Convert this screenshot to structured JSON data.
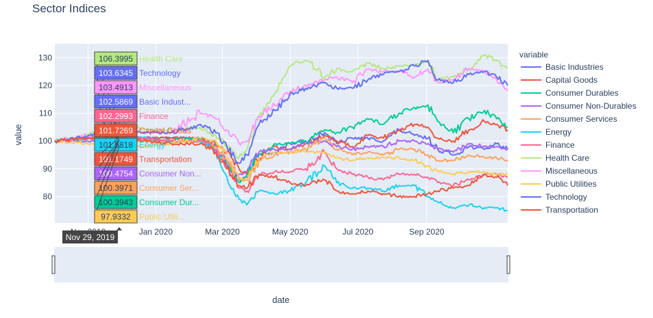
{
  "chart_data": {
    "type": "line",
    "title": "Sector Indices",
    "xlabel": "date",
    "ylabel": "value",
    "legend_title": "variable",
    "legend_position": "right",
    "grid": true,
    "x_ticks": [
      "Nov 2019",
      "Jan 2020",
      "Mar 2020",
      "May 2020",
      "Jul 2020",
      "Sep 2020"
    ],
    "y_ticks": [
      80,
      90,
      100,
      110,
      120,
      130
    ],
    "ylim": [
      70.5,
      135
    ],
    "xlim": [
      "2019-10-02",
      "2020-11-13"
    ],
    "hover_date": "Nov 29, 2019",
    "x_anchors": [
      "2019-10-02",
      "2019-11-01",
      "2019-11-29",
      "2019-12-20",
      "2020-01-15",
      "2020-02-10",
      "2020-02-24",
      "2020-03-05",
      "2020-03-16",
      "2020-03-23",
      "2020-04-03",
      "2020-04-17",
      "2020-05-01",
      "2020-05-15",
      "2020-06-01",
      "2020-06-12",
      "2020-06-26",
      "2020-07-10",
      "2020-07-24",
      "2020-08-07",
      "2020-08-21",
      "2020-09-02",
      "2020-09-11",
      "2020-09-25",
      "2020-10-09",
      "2020-10-23",
      "2020-11-03",
      "2020-11-13"
    ],
    "series": [
      {
        "name": "Basic Industries",
        "color": "#636efa",
        "hover_value": "102.5869",
        "hover_label": "Basic Indust...",
        "values": [
          100,
          101,
          102.59,
          101,
          101,
          101,
          98,
          92,
          86,
          87,
          95,
          96,
          99,
          100,
          103,
          99,
          101,
          101,
          100,
          104,
          102,
          101,
          97,
          95,
          98,
          97,
          99,
          97
        ]
      },
      {
        "name": "Capital Goods",
        "color": "#ef553b",
        "hover_value": "101.7269",
        "hover_label": "Capital Goods",
        "values": [
          100,
          101,
          101.73,
          101,
          101,
          101,
          99,
          96,
          90,
          88,
          94,
          98,
          97,
          99,
          102,
          100,
          98,
          102,
          101,
          104,
          106,
          105,
          101,
          100,
          104,
          107,
          106,
          104
        ]
      },
      {
        "name": "Consumer Durables",
        "color": "#00cc96",
        "hover_value": "100.3943",
        "hover_label": "Consumer Dur...",
        "values": [
          100,
          101,
          100.39,
          100,
          100,
          101,
          97,
          92,
          85,
          88,
          95,
          99,
          99,
          100,
          104,
          103,
          105,
          108,
          106,
          110,
          112,
          113,
          107,
          103,
          108,
          111,
          108,
          105
        ]
      },
      {
        "name": "Consumer Non-Durables",
        "color": "#ab63fa",
        "hover_value": "100.4754",
        "hover_label": "Consumer Non...",
        "values": [
          100,
          100,
          100.48,
          100,
          100,
          100,
          97,
          93,
          88,
          89,
          96,
          97,
          97,
          99,
          100,
          98,
          97,
          98,
          98,
          100,
          100,
          99,
          97,
          96,
          99,
          98,
          98,
          97
        ]
      },
      {
        "name": "Consumer Services",
        "color": "#ffa15a",
        "hover_value": "100.3971",
        "hover_label": "Consumer Ser...",
        "values": [
          100,
          101,
          100.4,
          100,
          100,
          100,
          98,
          93,
          86,
          86,
          93,
          95,
          96,
          97,
          101,
          97,
          95,
          96,
          95,
          97,
          97,
          95,
          93,
          93,
          95,
          94,
          94,
          93
        ]
      },
      {
        "name": "Energy",
        "color": "#19d3f3",
        "hover_value": "101.5818",
        "hover_label": "Energy",
        "values": [
          100,
          101,
          101.58,
          101,
          100,
          100,
          96,
          87,
          79,
          77,
          82,
          81,
          82,
          85,
          91,
          85,
          83,
          83,
          82,
          84,
          84,
          80,
          78,
          76,
          77,
          76,
          76,
          75
        ]
      },
      {
        "name": "Finance",
        "color": "#ff6692",
        "hover_value": "102.2993",
        "hover_label": "Finance",
        "values": [
          100,
          101,
          102.3,
          101,
          100,
          100,
          97,
          90,
          83,
          82,
          88,
          89,
          89,
          90,
          96,
          90,
          88,
          87,
          86,
          88,
          88,
          87,
          85,
          84,
          86,
          88,
          88,
          87
        ]
      },
      {
        "name": "Health Care",
        "color": "#b6e880",
        "hover_value": "106.3995",
        "hover_label": "Health Care",
        "values": [
          100,
          102,
          106.4,
          104,
          104,
          105,
          102,
          98,
          94,
          97,
          109,
          117,
          127,
          129,
          123,
          126,
          125,
          128,
          126,
          127,
          127,
          129,
          122,
          123,
          126,
          131,
          129,
          126
        ]
      },
      {
        "name": "Miscellaneous",
        "color": "#ff97ff",
        "hover_value": "103.4913",
        "hover_label": "Miscellaneous",
        "values": [
          100,
          102,
          103.49,
          103,
          103,
          110,
          108,
          104,
          99,
          100,
          109,
          113,
          118,
          120,
          122,
          123,
          121,
          126,
          125,
          125,
          123,
          126,
          121,
          122,
          126,
          125,
          122,
          118
        ]
      },
      {
        "name": "Public Utilities",
        "color": "#fecb52",
        "hover_value": "97.9332",
        "hover_label": "Public Utili...",
        "values": [
          100,
          99,
          97.93,
          98,
          99,
          101,
          100,
          95,
          87,
          86,
          94,
          96,
          96,
          96,
          96,
          94,
          93,
          94,
          94,
          94,
          93,
          91,
          89,
          88,
          89,
          89,
          88,
          88
        ]
      },
      {
        "name": "Technology",
        "color": "#636efa",
        "hover_value": "103.6345",
        "hover_label": "Technology",
        "values": [
          100,
          102,
          103.63,
          103,
          103,
          106,
          103,
          98,
          92,
          95,
          106,
          111,
          117,
          119,
          121,
          119,
          119,
          122,
          124,
          125,
          127,
          129,
          122,
          121,
          124,
          125,
          123,
          120
        ]
      },
      {
        "name": "Transportation",
        "color": "#ef553b",
        "hover_value": "101.1749",
        "hover_label": "Transportation",
        "values": [
          100,
          101,
          101.17,
          100,
          99,
          99,
          96,
          90,
          84,
          83,
          88,
          87,
          85,
          84,
          86,
          82,
          81,
          82,
          81,
          80,
          80,
          81,
          82,
          83,
          84,
          88,
          87,
          84
        ]
      }
    ]
  }
}
